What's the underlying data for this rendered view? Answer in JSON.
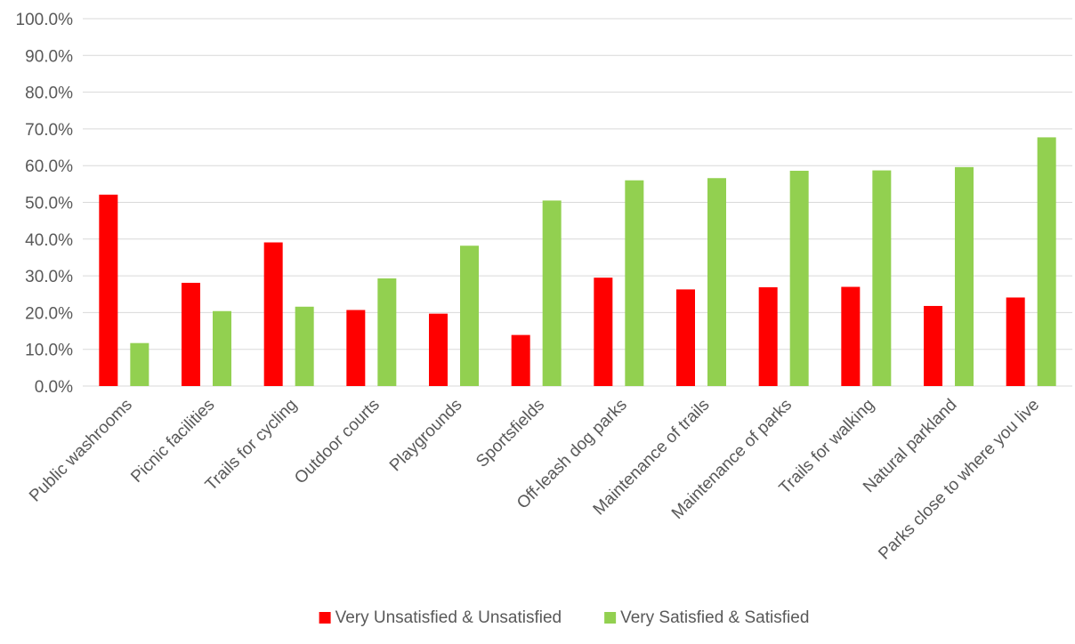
{
  "chart_data": {
    "type": "bar",
    "title": "",
    "xlabel": "",
    "ylabel": "",
    "ylim": [
      0,
      100
    ],
    "ytick_step": 10,
    "ytick_format": "percent_1dp",
    "grid": true,
    "legend_position": "bottom",
    "categories": [
      "Public washrooms",
      "Picnic facilities",
      "Trails for cycling",
      "Outdoor courts",
      "Playgrounds",
      "Sportsfields",
      "Off-leash dog parks",
      "Maintenance of trails",
      "Maintenance of parks",
      "Trails for walking",
      "Natural parkland",
      "Parks close to where you live"
    ],
    "series": [
      {
        "name": "Very Unsatisfied & Unsatisfied",
        "color": "#ff0000",
        "values": [
          52.1,
          28.1,
          39.1,
          20.7,
          19.7,
          13.9,
          29.5,
          26.3,
          26.9,
          27.0,
          21.8,
          24.1
        ]
      },
      {
        "name": "Very Satisfied & Satisfied",
        "color": "#92d050",
        "values": [
          11.7,
          20.4,
          21.6,
          29.3,
          38.2,
          50.5,
          56.0,
          56.6,
          58.6,
          58.7,
          59.6,
          67.7
        ]
      }
    ]
  }
}
